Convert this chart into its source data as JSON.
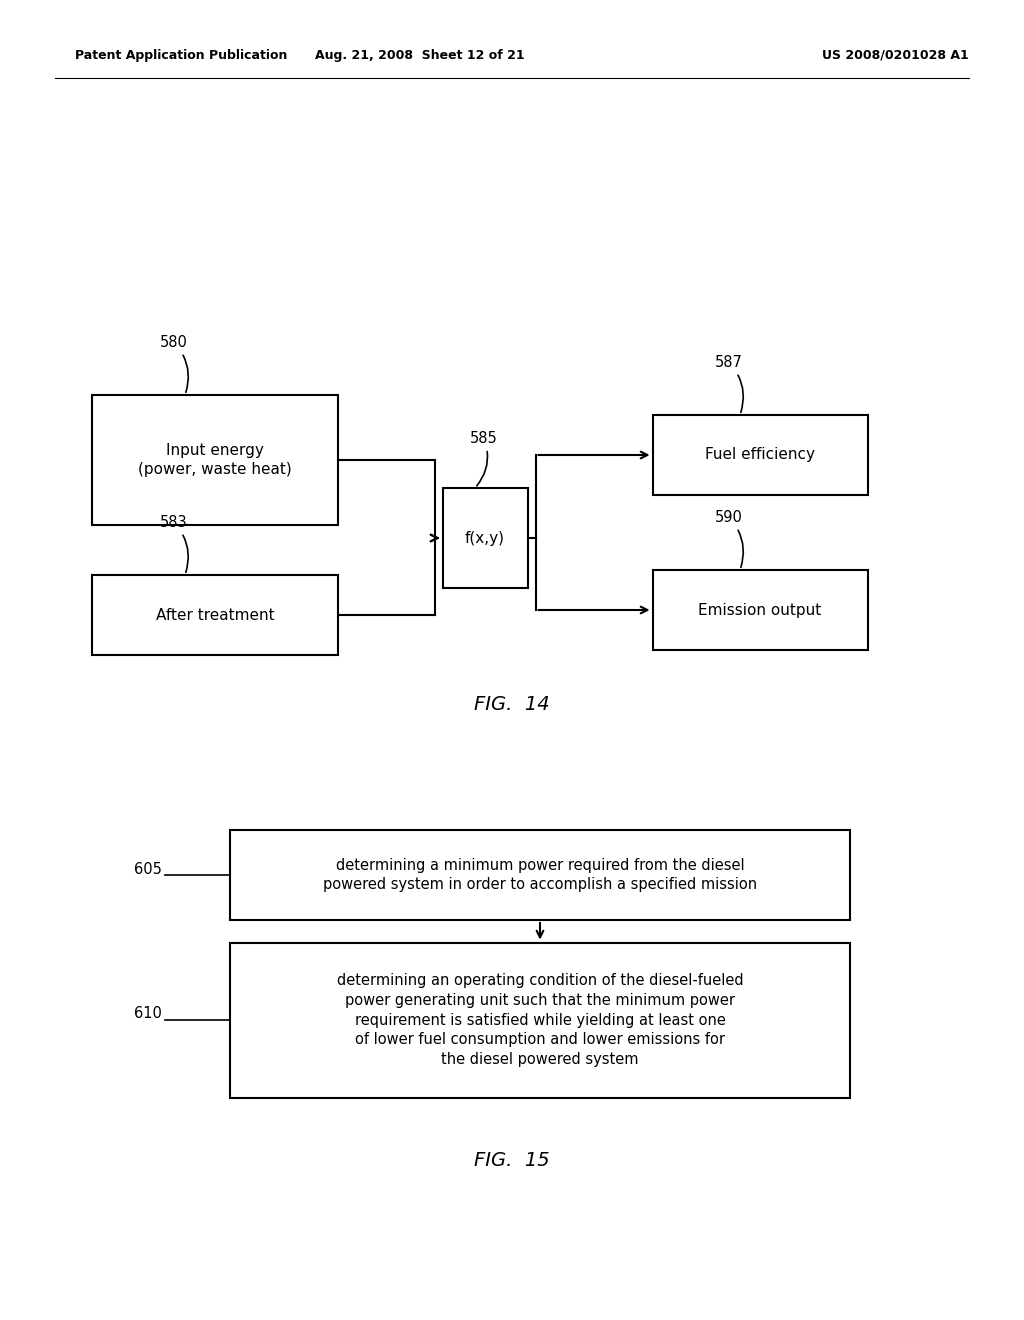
{
  "background_color": "#ffffff",
  "header_left": "Patent Application Publication",
  "header_center": "Aug. 21, 2008  Sheet 12 of 21",
  "header_right": "US 2008/0201028 A1",
  "fig14_label": "FIG.  14",
  "fig15_label": "FIG.  15",
  "page_width": 10.24,
  "page_height": 13.2,
  "dpi": 100
}
